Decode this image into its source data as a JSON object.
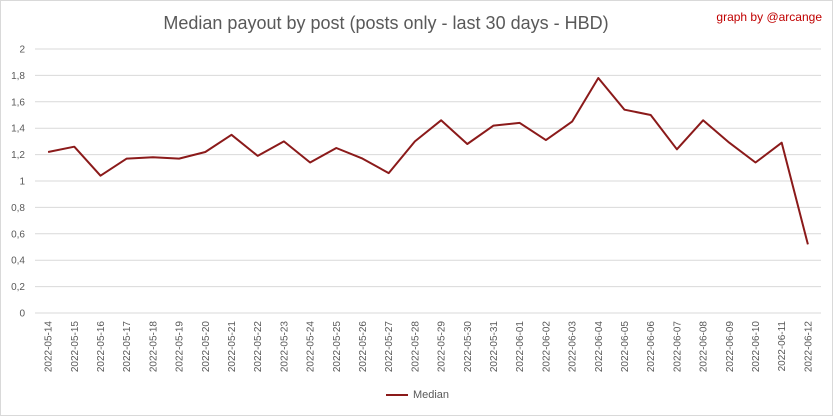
{
  "title": "Median payout by post (posts only - last 30 days - HBD)",
  "credit": "graph by @arcange",
  "chart_data": {
    "type": "line",
    "title": "Median payout by post (posts only - last 30 days - HBD)",
    "xlabel": "",
    "ylabel": "",
    "ylim": [
      0,
      2
    ],
    "yticks": [
      "0",
      "0,2",
      "0,4",
      "0,6",
      "0,8",
      "1",
      "1,2",
      "1,4",
      "1,6",
      "1,8",
      "2"
    ],
    "grid": true,
    "legend_position": "bottom",
    "categories": [
      "2022-05-14",
      "2022-05-15",
      "2022-05-16",
      "2022-05-17",
      "2022-05-18",
      "2022-05-19",
      "2022-05-20",
      "2022-05-21",
      "2022-05-22",
      "2022-05-23",
      "2022-05-24",
      "2022-05-25",
      "2022-05-26",
      "2022-05-27",
      "2022-05-28",
      "2022-05-29",
      "2022-05-30",
      "2022-05-31",
      "2022-06-01",
      "2022-06-02",
      "2022-06-03",
      "2022-06-04",
      "2022-06-05",
      "2022-06-06",
      "2022-06-07",
      "2022-06-08",
      "2022-06-09",
      "2022-06-10",
      "2022-06-11",
      "2022-06-12"
    ],
    "series": [
      {
        "name": "Median",
        "color": "#8b1a1a",
        "values": [
          1.22,
          1.26,
          1.04,
          1.17,
          1.18,
          1.17,
          1.22,
          1.35,
          1.19,
          1.3,
          1.14,
          1.25,
          1.17,
          1.06,
          1.3,
          1.46,
          1.28,
          1.42,
          1.44,
          1.31,
          1.45,
          1.78,
          1.54,
          1.5,
          1.24,
          1.46,
          1.29,
          1.14,
          1.29,
          0.52
        ]
      }
    ]
  }
}
